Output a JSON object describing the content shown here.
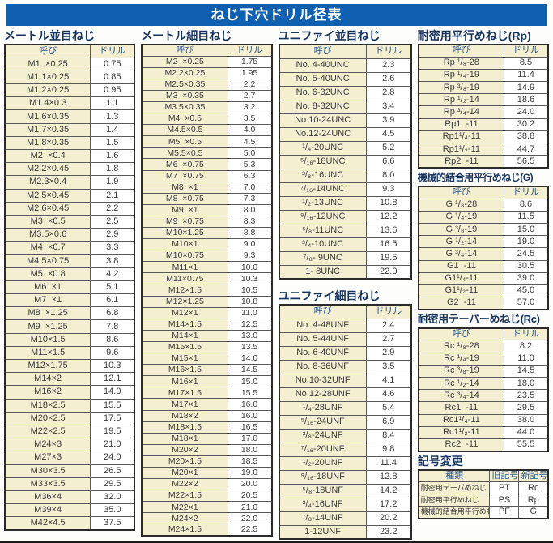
{
  "title": "ねじ下穴ドリル径表",
  "colors": {
    "title_bar": "#1060b2",
    "heading_text": "#17355f",
    "header_cell_bg": "#f5efd2",
    "header_cell_text": "#2a5a8c",
    "name_cell_bg": "#f5efd2",
    "value_cell_bg": "#ffffff",
    "border": "#2b2b2b"
  },
  "sections": {
    "metric_coarse": {
      "heading": "メートル並目ねじ",
      "col_headers": [
        "呼び",
        "ドリル"
      ],
      "rows": [
        [
          "M1  ×0.25",
          "0.75"
        ],
        [
          "M1.1×0.25",
          "0.85"
        ],
        [
          "M1.2×0.25",
          "0.95"
        ],
        [
          "M1.4×0.3",
          "1.1"
        ],
        [
          "M1.6×0.35",
          "1.3"
        ],
        [
          "M1.7×0.35",
          "1.4"
        ],
        [
          "M1.8×0.35",
          "1.5"
        ],
        [
          "M2  ×0.4",
          "1.6"
        ],
        [
          "M2.2×0.45",
          "1.8"
        ],
        [
          "M2.3×0.4",
          "1.9"
        ],
        [
          "M2.5×0.45",
          "2.1"
        ],
        [
          "M2.6×0.45",
          "2.2"
        ],
        [
          "M3  ×0.5",
          "2.5"
        ],
        [
          "M3.5×0.6",
          "2.9"
        ],
        [
          "M4  ×0.7",
          "3.3"
        ],
        [
          "M4.5×0.75",
          "3.8"
        ],
        [
          "M5  ×0.8",
          "4.2"
        ],
        [
          "M6  ×1",
          "5.1"
        ],
        [
          "M7  ×1",
          "6.1"
        ],
        [
          "M8  ×1.25",
          "6.8"
        ],
        [
          "M9  ×1.25",
          "7.8"
        ],
        [
          "M10×1.5",
          "8.6"
        ],
        [
          "M11×1.5",
          "9.6"
        ],
        [
          "M12×1.75",
          "10.3"
        ],
        [
          "M14×2",
          "12.1"
        ],
        [
          "M16×2",
          "14.0"
        ],
        [
          "M18×2.5",
          "15.5"
        ],
        [
          "M20×2.5",
          "17.5"
        ],
        [
          "M22×2.5",
          "19.5"
        ],
        [
          "M24×3",
          "21.0"
        ],
        [
          "M27×3",
          "24.0"
        ],
        [
          "M30×3.5",
          "26.5"
        ],
        [
          "M33×3.5",
          "29.5"
        ],
        [
          "M36×4",
          "32.0"
        ],
        [
          "M39×4",
          "35.0"
        ],
        [
          "M42×4.5",
          "37.5"
        ]
      ]
    },
    "metric_fine": {
      "heading": "メートル細目ねじ",
      "col_headers": [
        "呼び",
        "ドリル"
      ],
      "rows": [
        [
          "M2  ×0.25",
          "1.75"
        ],
        [
          "M2.2×0.25",
          "1.95"
        ],
        [
          "M2.5×0.35",
          "2.2"
        ],
        [
          "M3  ×0.35",
          "2.7"
        ],
        [
          "M3.5×0.35",
          "3.2"
        ],
        [
          "M4  ×0.5",
          "3.5"
        ],
        [
          "M4.5×0.5",
          "4.0"
        ],
        [
          "M5  ×0.5",
          "4.5"
        ],
        [
          "M5.5×0.5",
          "5.0"
        ],
        [
          "M6  ×0.75",
          "5.3"
        ],
        [
          "M7  ×0.75",
          "6.3"
        ],
        [
          "M8  ×1",
          "7.0"
        ],
        [
          "M8  ×0.75",
          "7.3"
        ],
        [
          "M9  ×1",
          "8.0"
        ],
        [
          "M9  ×0.75",
          "8.3"
        ],
        [
          "M10×1.25",
          "8.8"
        ],
        [
          "M10×1",
          "9.0"
        ],
        [
          "M10×0.75",
          "9.3"
        ],
        [
          "M11×1",
          "10.0"
        ],
        [
          "M11×0.75",
          "10.3"
        ],
        [
          "M12×1.5",
          "10.5"
        ],
        [
          "M12×1.25",
          "10.8"
        ],
        [
          "M12×1",
          "11.0"
        ],
        [
          "M14×1.5",
          "12.5"
        ],
        [
          "M14×1",
          "13.0"
        ],
        [
          "M15×1.5",
          "13.5"
        ],
        [
          "M15×1",
          "14.0"
        ],
        [
          "M16×1.5",
          "14.5"
        ],
        [
          "M16×1",
          "15.0"
        ],
        [
          "M17×1.5",
          "15.5"
        ],
        [
          "M17×1",
          "16.0"
        ],
        [
          "M18×2",
          "16.0"
        ],
        [
          "M18×1.5",
          "16.5"
        ],
        [
          "M18×1",
          "17.0"
        ],
        [
          "M20×2",
          "18.0"
        ],
        [
          "M20×1.5",
          "18.5"
        ],
        [
          "M20×1",
          "19.0"
        ],
        [
          "M22×2",
          "20.0"
        ],
        [
          "M22×1.5",
          "20.5"
        ],
        [
          "M22×1",
          "21.0"
        ],
        [
          "M24×2",
          "22.0"
        ],
        [
          "M24×1.5",
          "22.5"
        ]
      ]
    },
    "unified_coarse": {
      "heading": "ユニファイ並目ねじ",
      "col_headers": [
        "呼び",
        "ドリル"
      ],
      "rows": [
        [
          "No. 4-40UNC",
          "2.3"
        ],
        [
          "No. 5-40UNC",
          "2.6"
        ],
        [
          "No. 6-32UNC",
          "2.8"
        ],
        [
          "No. 8-32UNC",
          "3.4"
        ],
        [
          "No.10-24UNC",
          "3.9"
        ],
        [
          "No.12-24UNC",
          "4.5"
        ],
        [
          "¹/₄-20UNC",
          "5.2"
        ],
        [
          "⁵/₁₆-18UNC",
          "6.6"
        ],
        [
          "³/₈-16UNC",
          "8.0"
        ],
        [
          "⁷/₁₆-14UNC",
          "9.3"
        ],
        [
          "¹/₂-13UNC",
          "10.8"
        ],
        [
          "⁹/₁₆-12UNC",
          "12.2"
        ],
        [
          "⁵/₈-11UNC",
          "13.6"
        ],
        [
          "³/₄-10UNC",
          "16.5"
        ],
        [
          "⁷/₈- 9UNC",
          "19.5"
        ],
        [
          "1- 8UNC",
          "22.0"
        ]
      ]
    },
    "unified_fine": {
      "heading": "ユニファイ細目ねじ",
      "col_headers": [
        "呼び",
        "ドリル"
      ],
      "rows": [
        [
          "No. 4-48UNF",
          "2.4"
        ],
        [
          "No. 5-44UNF",
          "2.7"
        ],
        [
          "No. 6-40UNF",
          "2.9"
        ],
        [
          "No. 8-36UNF",
          "3.5"
        ],
        [
          "No.10-32UNF",
          "4.1"
        ],
        [
          "No.12-28UNF",
          "4.6"
        ],
        [
          "¹/₄-28UNF",
          "5.4"
        ],
        [
          "⁵/₁₆-24UNF",
          "6.9"
        ],
        [
          "³/₈-24UNF",
          "8.4"
        ],
        [
          "⁷/₁₆-20UNF",
          "9.8"
        ],
        [
          "¹/₂-20UNF",
          "11.4"
        ],
        [
          "⁹/₁₆-18UNF",
          "12.8"
        ],
        [
          "⁵/₈-18UNF",
          "14.2"
        ],
        [
          "³/₄-16UNF",
          "17.2"
        ],
        [
          "⁷/₈-14UNF",
          "20.2"
        ],
        [
          "1-12UNF",
          "23.2"
        ]
      ]
    },
    "rp": {
      "heading": "耐密用平行めねじ(Rp)",
      "col_headers": [
        "呼び",
        "ドリル"
      ],
      "rows": [
        [
          "Rp ¹/₈-28",
          "8.5"
        ],
        [
          "Rp ¹/₄-19",
          "11.4"
        ],
        [
          "Rp ³/₈-19",
          "14.9"
        ],
        [
          "Rp ¹/₂-14",
          "18.6"
        ],
        [
          "Rp ³/₄-14",
          "24.0"
        ],
        [
          "Rp1  -11",
          "30.2"
        ],
        [
          "Rp1¹/₄-11",
          "38.8"
        ],
        [
          "Rp1¹/₂-11",
          "44.7"
        ],
        [
          "Rp2  -11",
          "56.5"
        ]
      ]
    },
    "g": {
      "heading": "機械的結合用平行めねじ(G)",
      "col_headers": [
        "呼び",
        "ドリル"
      ],
      "rows": [
        [
          "G ¹/₈-28",
          "8.6"
        ],
        [
          "G ¹/₄-19",
          "11.5"
        ],
        [
          "G ³/₈-19",
          "15.0"
        ],
        [
          "G ¹/₂-14",
          "19.0"
        ],
        [
          "G ³/₄-14",
          "24.5"
        ],
        [
          "G1  -11",
          "30.5"
        ],
        [
          "G1¹/₄-11",
          "39.0"
        ],
        [
          "G1¹/₂-11",
          "45.0"
        ],
        [
          "G2  -11",
          "57.0"
        ]
      ]
    },
    "rc": {
      "heading": "耐密用テーパーめねじ(Rc)",
      "col_headers": [
        "呼び",
        "ドリル"
      ],
      "rows": [
        [
          "Rc ¹/₈-28",
          "8.2"
        ],
        [
          "Rc ¹/₄-19",
          "11.0"
        ],
        [
          "Rc ³/₈-19",
          "14.5"
        ],
        [
          "Rc ¹/₂-14",
          "18.0"
        ],
        [
          "Rc ³/₄-14",
          "23.5"
        ],
        [
          "Rc1  -11",
          "29.5"
        ],
        [
          "Rc1¹/₄-11",
          "38.0"
        ],
        [
          "Rc1¹/₂-11",
          "44.0"
        ],
        [
          "Rc2  -11",
          "55.5"
        ]
      ]
    },
    "symbol_change": {
      "heading": "記号変更",
      "col_headers": [
        "種類",
        "旧記号",
        "新記号"
      ],
      "rows": [
        [
          "耐密用テーパめねじ",
          "PT",
          "Rc"
        ],
        [
          "耐密用平行めねじ",
          "PS",
          "Rp"
        ],
        [
          "機械的結合用平行めねじ",
          "PF",
          "G"
        ]
      ]
    }
  }
}
